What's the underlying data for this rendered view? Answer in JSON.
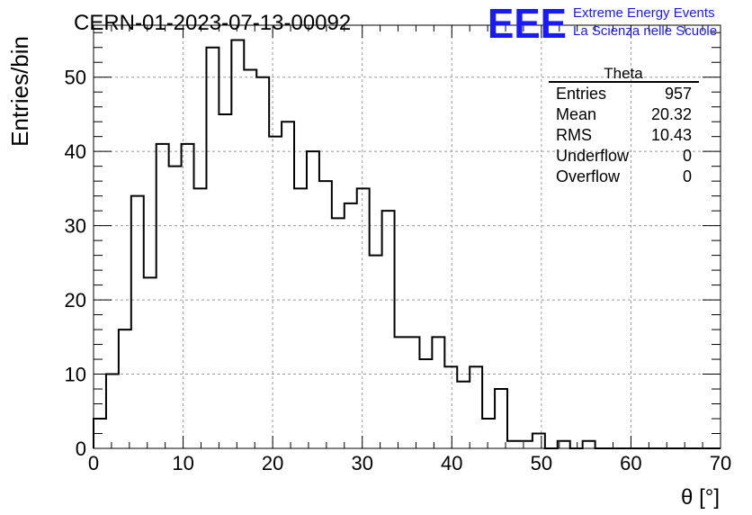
{
  "chart_data": {
    "type": "bar",
    "title": "CERN-01-2023-07-13-00092",
    "xlabel": "θ [°]",
    "ylabel": "Entries/bin",
    "xlim": [
      0,
      70
    ],
    "ylim": [
      0,
      57
    ],
    "grid": true,
    "bin_width": 1.4,
    "x_ticks": [
      0,
      10,
      20,
      30,
      40,
      50,
      60,
      70
    ],
    "y_ticks": [
      0,
      10,
      20,
      30,
      40,
      50
    ],
    "values": [
      4,
      10,
      16,
      34,
      23,
      41,
      38,
      41,
      35,
      54,
      45,
      55,
      51,
      50,
      42,
      44,
      35,
      40,
      36,
      31,
      33,
      35,
      26,
      32,
      15,
      15,
      12,
      15,
      11,
      9,
      11,
      4,
      8,
      1,
      1,
      2,
      0,
      1,
      0,
      1,
      0,
      0,
      0,
      0,
      0,
      0,
      0,
      0,
      0,
      0
    ]
  },
  "stats": {
    "name": "Theta",
    "rows": [
      {
        "label": "Entries",
        "value": "957"
      },
      {
        "label": "Mean",
        "value": "20.32"
      },
      {
        "label": "RMS",
        "value": "10.43"
      },
      {
        "label": "Underflow",
        "value": "0"
      },
      {
        "label": "Overflow",
        "value": "0"
      }
    ]
  },
  "logo": {
    "text": "EEE",
    "line1": "Extreme Energy Events",
    "line2": "La Scienza nelle Scuole",
    "color": "#1a1aff"
  }
}
